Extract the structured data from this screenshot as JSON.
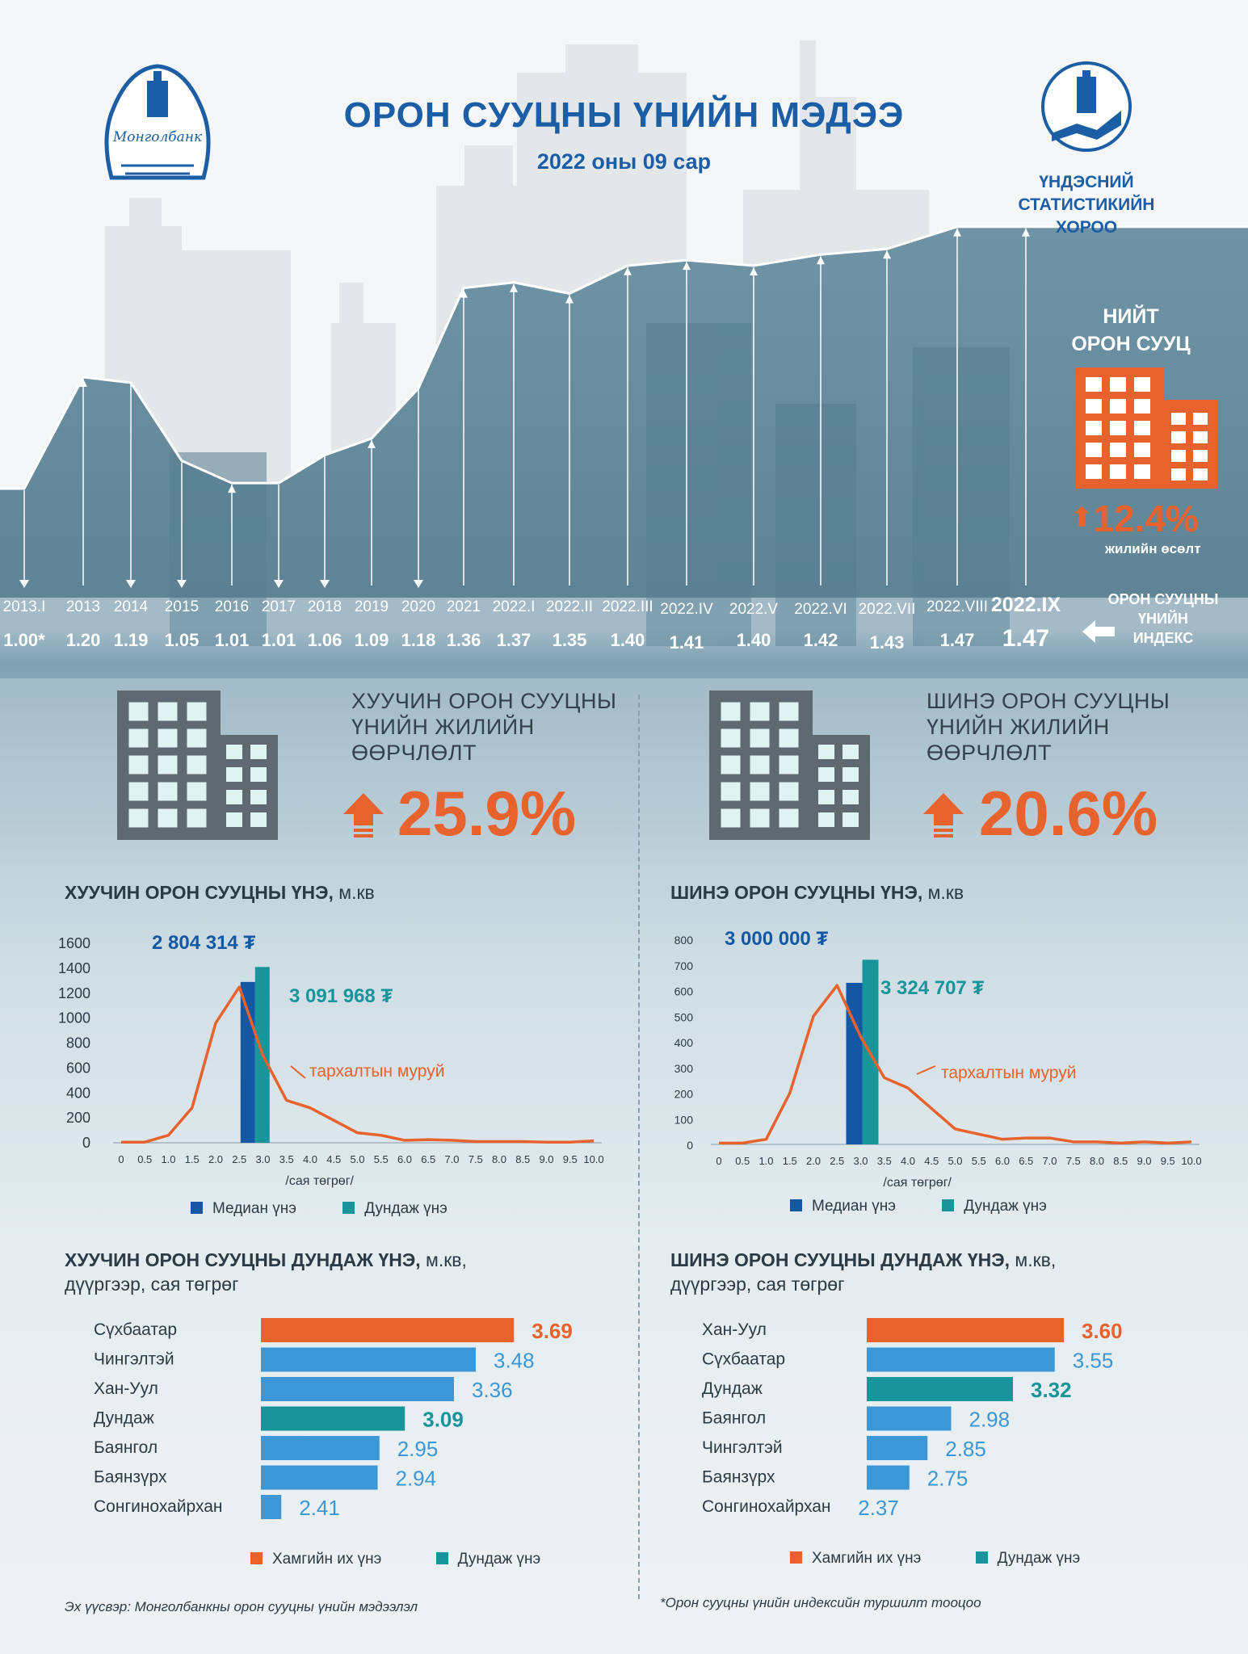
{
  "header": {
    "title": "ОРОН СУУЦНЫ ҮНИЙН МЭДЭЭ",
    "subtitle": "2022 оны 09 сар",
    "left_logo_text": "Монголбанк",
    "nso_name_lines": [
      "ҮНДЭСНИЙ",
      "СТАТИСТИКИЙН",
      "ХОРОО"
    ]
  },
  "total_housing": {
    "label_lines": [
      "НИЙТ",
      "ОРОН СУУЦ"
    ],
    "growth": "12.4%",
    "growth_label": "жилийн өсөлт"
  },
  "price_index": {
    "label_lines": [
      "ОРОН СУУЦНЫ",
      "ҮНИЙН",
      "ИНДЕКС"
    ],
    "periods": [
      "2013.I",
      "2013",
      "2014",
      "2015",
      "2016",
      "2017",
      "2018",
      "2019",
      "2020",
      "2021",
      "2022.I",
      "2022.II",
      "2022.III",
      "2022.IV",
      "2022.V",
      "2022.VI",
      "2022.VII",
      "2022.VIII",
      "2022.IX"
    ],
    "value_labels": [
      "1.00*",
      "1.20",
      "1.19",
      "1.05",
      "1.01",
      "1.01",
      "1.06",
      "1.09",
      "1.18",
      "1.36",
      "1.37",
      "1.35",
      "1.40",
      "1.41",
      "1.40",
      "1.42",
      "1.43",
      "1.47",
      "1.47"
    ]
  },
  "old_change": {
    "title_lines": [
      "ХУУЧИН ОРОН СУУЦНЫ",
      "ҮНИЙН ЖИЛИЙН",
      "ӨӨРЧЛӨЛТ"
    ],
    "value": "25.9%"
  },
  "new_change": {
    "title_lines": [
      "ШИНЭ ОРОН СУУЦНЫ",
      "ҮНИЙН ЖИЛИЙН",
      "ӨӨРЧЛӨЛТ"
    ],
    "value": "20.6%"
  },
  "old_hist": {
    "title": "ХУУЧИН ОРОН СУУЦНЫ ҮНЭ,",
    "unit": "м.кв",
    "median_label": "2 804 314 ₮",
    "mean_label": "3 091 968 ₮",
    "curve_label": "тархалтын муруй",
    "x_axis_label": "/сая төгрөг/",
    "legend_median": "Медиан үнэ",
    "legend_mean": "Дундаж үнэ"
  },
  "new_hist": {
    "title": "ШИНЭ ОРОН СУУЦНЫ ҮНЭ,",
    "unit": "м.кв",
    "median_label": "3 000 000 ₮",
    "mean_label": "3 324 707 ₮",
    "curve_label": "тархалтын муруй",
    "x_axis_label": "/сая төгрөг/",
    "legend_median": "Медиан үнэ",
    "legend_mean": "Дундаж үнэ"
  },
  "old_district": {
    "title": "ХУУЧИН ОРОН СУУЦНЫ ДУНДАЖ ҮНЭ,",
    "title_tail": "м.кв,",
    "title_line2": "дүүргээр, сая төгрөг",
    "legend_max": "Хамгийн их үнэ",
    "legend_mean": "Дундаж үнэ"
  },
  "new_district": {
    "title": "ШИНЭ ОРОН СУУЦНЫ ДУНДАЖ ҮНЭ,",
    "title_tail": "м.кв,",
    "title_line2": "дүүргээр, сая төгрөг",
    "legend_max": "Хамгийн их үнэ",
    "legend_mean": "Дундаж үнэ"
  },
  "footer": {
    "source": "Эх үүсвэр: Монголбанкны орон сууцны үнийн мэдээлэл",
    "note": "*Орон сууцны үнийн индексийн туршилт тооцоо"
  },
  "colors": {
    "brand_blue": "#1b5ea6",
    "orange": "#e8622d",
    "median": "#1457a3",
    "mean": "#17959a",
    "bar_blue": "#3c97d6"
  },
  "chart_data": [
    {
      "type": "line",
      "title": "",
      "x": [
        "2013.I",
        "2013",
        "2014",
        "2015",
        "2016",
        "2017",
        "2018",
        "2019",
        "2020",
        "2021",
        "2022.I",
        "2022.II",
        "2022.III",
        "2022.IV",
        "2022.V",
        "2022.VI",
        "2022.VII",
        "2022.VIII",
        "2022.IX"
      ],
      "series": [
        {
          "name": "ОРОН СУУЦНЫ ҮНИЙН ИНДЕКС",
          "values": [
            1.0,
            1.2,
            1.19,
            1.05,
            1.01,
            1.01,
            1.06,
            1.09,
            1.18,
            1.36,
            1.37,
            1.35,
            1.4,
            1.41,
            1.4,
            1.42,
            1.43,
            1.47,
            1.47
          ]
        }
      ],
      "ylim": [
        0.9,
        1.6
      ]
    },
    {
      "type": "bar",
      "title": "ХУУЧИН ОРОН СУУЦНЫ ҮНЭ, м.кв",
      "xlabel": "/сая төгрөг/",
      "ylabel": "",
      "xlim": [
        0,
        10
      ],
      "ylim": [
        0,
        1600
      ],
      "x_ticks": [
        "0",
        "0.5",
        "1.0",
        "1.5",
        "2.0",
        "2.5",
        "3.0",
        "3.5",
        "4.0",
        "4.5",
        "5.0",
        "5.5",
        "6.0",
        "6.5",
        "7.0",
        "7.5",
        "8.0",
        "8.5",
        "9.0",
        "9.5",
        "10.0"
      ],
      "y_ticks": [
        "0",
        "200",
        "400",
        "600",
        "800",
        "1000",
        "1200",
        "1400",
        "1600"
      ],
      "bars": [
        {
          "name": "Медиан үнэ",
          "x": 2.8,
          "value": 1290
        },
        {
          "name": "Дундаж үнэ",
          "x": 3.09,
          "value": 1410
        }
      ],
      "curve": {
        "name": "тархалтын муруй",
        "x": [
          0,
          0.5,
          1.0,
          1.5,
          2.0,
          2.5,
          3.0,
          3.5,
          4.0,
          4.5,
          5.0,
          5.5,
          6.0,
          6.5,
          7.0,
          7.5,
          8.0,
          8.5,
          9.0,
          9.5,
          10.0
        ],
        "y": [
          5,
          5,
          60,
          280,
          960,
          1250,
          700,
          340,
          280,
          180,
          80,
          60,
          20,
          25,
          20,
          10,
          10,
          10,
          5,
          5,
          15
        ]
      }
    },
    {
      "type": "bar",
      "title": "ШИНЭ ОРОН СУУЦНЫ ҮНЭ, м.кв",
      "xlabel": "/сая төгрөг/",
      "ylabel": "",
      "xlim": [
        0,
        10
      ],
      "ylim": [
        0,
        800
      ],
      "x_ticks": [
        "0",
        "0.5",
        "1.0",
        "1.5",
        "2.0",
        "2.5",
        "3.0",
        "3.5",
        "4.0",
        "4.5",
        "5.0",
        "5.5",
        "6.0",
        "6.5",
        "7.0",
        "7.5",
        "8.0",
        "8.5",
        "9.0",
        "9.5",
        "10.0"
      ],
      "y_ticks": [
        "0",
        "100",
        "200",
        "300",
        "400",
        "500",
        "600",
        "700",
        "800"
      ],
      "bars": [
        {
          "name": "Медиан үнэ",
          "x": 3.0,
          "value": 630
        },
        {
          "name": "Дундаж үнэ",
          "x": 3.32,
          "value": 720
        }
      ],
      "curve": {
        "name": "тархалтын муруй",
        "x": [
          0,
          0.5,
          1.0,
          1.5,
          2.0,
          2.5,
          3.0,
          3.5,
          4.0,
          4.5,
          5.0,
          5.5,
          6.0,
          6.5,
          7.0,
          7.5,
          8.0,
          8.5,
          9.0,
          9.5,
          10.0
        ],
        "y": [
          5,
          5,
          20,
          200,
          500,
          620,
          420,
          260,
          220,
          140,
          60,
          40,
          20,
          25,
          25,
          10,
          10,
          5,
          10,
          5,
          10
        ]
      }
    },
    {
      "type": "bar",
      "title": "ХУУЧИН ОРОН СУУЦНЫ ДУНДАЖ ҮНЭ, м.кв, дүүргээр, сая төгрөг",
      "orientation": "horizontal",
      "categories": [
        "Сүхбаатар",
        "Чингэлтэй",
        "Хан-Уул",
        "Дундаж",
        "Баянгол",
        "Баянзүрх",
        "Сонгинохайрхан"
      ],
      "values": [
        3.69,
        3.48,
        3.36,
        3.09,
        2.95,
        2.94,
        2.41
      ],
      "value_labels": [
        "3.69",
        "3.48",
        "3.36",
        "3.09",
        "2.95",
        "2.94",
        "2.41"
      ],
      "highlight": {
        "max": "Сүхбаатар",
        "mean": "Дундаж"
      }
    },
    {
      "type": "bar",
      "title": "ШИНЭ ОРОН СУУЦНЫ ДУНДАЖ ҮНЭ, м.кв, дүүргээр, сая төгрөг",
      "orientation": "horizontal",
      "categories": [
        "Хан-Уул",
        "Сүхбаатар",
        "Дундаж",
        "Баянгол",
        "Чингэлтэй",
        "Баянзүрх",
        "Сонгинохайрхан"
      ],
      "values": [
        3.6,
        3.55,
        3.32,
        2.98,
        2.85,
        2.75,
        2.37
      ],
      "value_labels": [
        "3.60",
        "3.55",
        "3.32",
        "2.98",
        "2.85",
        "2.75",
        "2.37"
      ],
      "highlight": {
        "max": "Хан-Уул",
        "mean": "Дундаж"
      }
    }
  ]
}
